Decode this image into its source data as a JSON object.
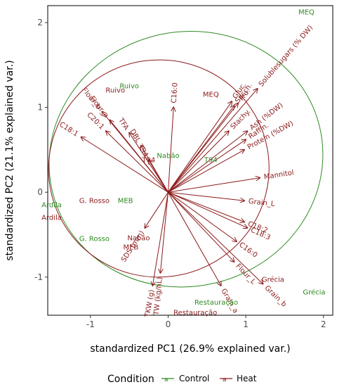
{
  "chart_data": {
    "type": "scatter",
    "subtype": "biplot",
    "xlabel": "standardized PC1 (26.9% explained var.)",
    "ylabel": "standardized PC2 (21.1% explained var.)",
    "xlim": [
      -1.55,
      2.12
    ],
    "ylim": [
      -1.45,
      2.2
    ],
    "x_ticks": [
      -1,
      0,
      1,
      2
    ],
    "y_ticks": [
      -1,
      0,
      1,
      2
    ],
    "grid": false,
    "legend": {
      "title": "Condition",
      "placement": "bottom",
      "entries": [
        {
          "label": "Control",
          "color": "#2E8B22"
        },
        {
          "label": "Heat",
          "color": "#8B1A1A"
        }
      ]
    },
    "colors": {
      "control": "#2E8B22",
      "heat": "#8B1A1A",
      "arrow": "#8B1A1A",
      "panel_border": "#000000"
    },
    "ellipses": [
      {
        "group": "Control",
        "cx": 0.23,
        "cy": 0.39,
        "rx": 1.77,
        "ry": 1.5,
        "angle_deg": -14
      },
      {
        "group": "Heat",
        "cx": -0.12,
        "cy": 0.28,
        "rx": 1.42,
        "ry": 1.28,
        "angle_deg": -8
      }
    ],
    "variables": [
      {
        "label": "C16:0",
        "x": 0.07,
        "y": 1.0
      },
      {
        "label": "TFA",
        "x": -0.5,
        "y": 0.7
      },
      {
        "label": "C20:1",
        "x": -0.8,
        "y": 0.72
      },
      {
        "label": "Flour_b",
        "x": -0.85,
        "y": 0.95
      },
      {
        "label": "Flour_a",
        "x": -0.75,
        "y": 0.85
      },
      {
        "label": "C18:1",
        "x": -1.12,
        "y": 0.65
      },
      {
        "label": "DBL",
        "x": -0.35,
        "y": 0.55
      },
      {
        "label": "T94",
        "x": -0.25,
        "y": 0.38
      },
      {
        "label": "Gluc.",
        "x": 0.82,
        "y": 1.07
      },
      {
        "label": "Sacch.",
        "x": 0.85,
        "y": 1.02
      },
      {
        "label": "Fru.",
        "x": 0.9,
        "y": 1.05
      },
      {
        "label": "Solublesugars (% DW)",
        "x": 1.15,
        "y": 1.22
      },
      {
        "label": "Stachy.",
        "x": 0.78,
        "y": 0.72
      },
      {
        "label": "Ash (%DW)",
        "x": 1.02,
        "y": 0.72
      },
      {
        "label": "Raffin.",
        "x": 1.0,
        "y": 0.62
      },
      {
        "label": "Protein (%DW)",
        "x": 0.98,
        "y": 0.5
      },
      {
        "label": "Mannitol",
        "x": 1.18,
        "y": 0.17
      },
      {
        "label": "Grain_L",
        "x": 0.98,
        "y": -0.1
      },
      {
        "label": "C18:2",
        "x": 0.98,
        "y": -0.35
      },
      {
        "label": "C18:3",
        "x": 1.02,
        "y": -0.42
      },
      {
        "label": "C16:0",
        "x": 0.88,
        "y": -0.58
      },
      {
        "label": "Flour_L",
        "x": 0.85,
        "y": -0.82
      },
      {
        "label": "Grain_b",
        "x": 1.22,
        "y": -1.08
      },
      {
        "label": "Grain_a",
        "x": 0.68,
        "y": -1.1
      },
      {
        "label": "SDS (mm)",
        "x": -0.3,
        "y": -0.42
      },
      {
        "label": "TW (kg/hL)",
        "x": -0.1,
        "y": -0.95
      },
      {
        "label": "TKW (g)",
        "x": -0.2,
        "y": -1.1
      }
    ],
    "observations": [
      {
        "label": "MEQ",
        "group": "Control",
        "x": 1.78,
        "y": 2.12
      },
      {
        "label": "MEQ",
        "group": "Heat",
        "x": 0.55,
        "y": 1.15
      },
      {
        "label": "Ruivo",
        "group": "Control",
        "x": -0.5,
        "y": 1.25
      },
      {
        "label": "Ruivo",
        "group": "Heat",
        "x": -0.68,
        "y": 1.2
      },
      {
        "label": "Nabão",
        "group": "Control",
        "x": 0.0,
        "y": 0.43
      },
      {
        "label": "Nabão",
        "group": "Heat",
        "x": -0.38,
        "y": -0.54
      },
      {
        "label": "T94",
        "group": "Control",
        "x": 0.55,
        "y": 0.38
      },
      {
        "label": "T94",
        "group": "Heat",
        "x": -0.25,
        "y": 0.38
      },
      {
        "label": "MEB",
        "group": "Control",
        "x": -0.55,
        "y": -0.1
      },
      {
        "label": "MEB",
        "group": "Heat",
        "x": -0.48,
        "y": -0.65
      },
      {
        "label": "G. Rosso",
        "group": "Control",
        "x": -0.95,
        "y": -0.55
      },
      {
        "label": "G. Rosso",
        "group": "Heat",
        "x": -0.95,
        "y": -0.1
      },
      {
        "label": "Ardila",
        "group": "Control",
        "x": -1.5,
        "y": -0.15
      },
      {
        "label": "Ardila",
        "group": "Heat",
        "x": -1.5,
        "y": -0.3
      },
      {
        "label": "Grécia",
        "group": "Control",
        "x": 1.88,
        "y": -1.18
      },
      {
        "label": "Grécia",
        "group": "Heat",
        "x": 1.35,
        "y": -1.03
      },
      {
        "label": "Restauração",
        "group": "Control",
        "x": 0.62,
        "y": -1.3
      },
      {
        "label": "Restauração",
        "group": "Heat",
        "x": 0.35,
        "y": -1.42
      }
    ]
  }
}
